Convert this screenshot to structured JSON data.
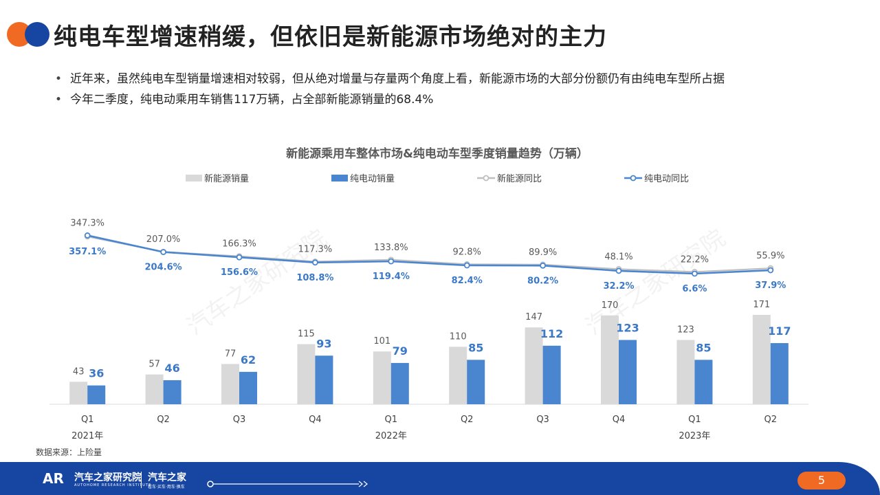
{
  "page": {
    "title": "纯电车型增速稍缓，但依旧是新能源市场绝对的主力",
    "bullets": [
      "近年来，虽然纯电车型销量增速相对较弱，但从绝对增量与存量两个角度上看，新能源市场的大部分份额仍有由纯电车型所占据",
      "今年二季度，纯电动乘用车销售117万辆，占全部新能源销量的68.4%"
    ],
    "source": "数据来源：上险量",
    "page_number": "5",
    "watermark": "汽车之家研究院"
  },
  "footer": {
    "logo_text": "AR",
    "brand_research": "汽车之家研究院",
    "brand_research_en": "AUTOHOME RESEARCH INSTITUTE",
    "brand_autohome": "汽车之家",
    "brand_autohome_sub": "看车·买车·用车·换车"
  },
  "colors": {
    "nev_bar": "#d9d9d9",
    "bev_bar": "#4a86cf",
    "nev_line": "#bfbfbf",
    "bev_line": "#4a86cf",
    "nev_label": "#595959",
    "bev_label": "#3b78c6",
    "accent_orange": "#f06a24",
    "accent_blue": "#1746a2"
  },
  "chart_data": {
    "type": "bar",
    "title": "新能源乘用车整体市场&纯电动车型季度销量趋势（万辆）",
    "categories": [
      "Q1",
      "Q2",
      "Q3",
      "Q4",
      "Q1",
      "Q2",
      "Q3",
      "Q4",
      "Q1",
      "Q2"
    ],
    "year_labels": [
      "2021年",
      "",
      "",
      "",
      "2022年",
      "",
      "",
      "",
      "2023年",
      ""
    ],
    "series": [
      {
        "name": "新能源销量",
        "kind": "bar",
        "values": [
          43,
          57,
          77,
          115,
          101,
          110,
          147,
          170,
          123,
          171
        ]
      },
      {
        "name": "纯电动销量",
        "kind": "bar",
        "values": [
          36,
          46,
          62,
          93,
          79,
          85,
          112,
          123,
          85,
          117
        ]
      },
      {
        "name": "新能源同比",
        "kind": "line",
        "values": [
          347.3,
          207.0,
          166.3,
          117.3,
          133.8,
          92.8,
          89.9,
          48.1,
          22.2,
          55.9
        ],
        "labels": [
          "347.3%",
          "207.0%",
          "166.3%",
          "117.3%",
          "133.8%",
          "92.8%",
          "89.9%",
          "48.1%",
          "22.2%",
          "55.9%"
        ]
      },
      {
        "name": "纯电动同比",
        "kind": "line",
        "values": [
          357.1,
          204.6,
          156.6,
          108.8,
          119.4,
          82.4,
          80.2,
          32.2,
          6.6,
          37.9
        ],
        "labels": [
          "357.1%",
          "204.6%",
          "156.6%",
          "108.8%",
          "119.4%",
          "82.4%",
          "80.2%",
          "32.2%",
          "6.6%",
          "37.9%"
        ]
      }
    ],
    "legend": "top",
    "grid": false
  }
}
